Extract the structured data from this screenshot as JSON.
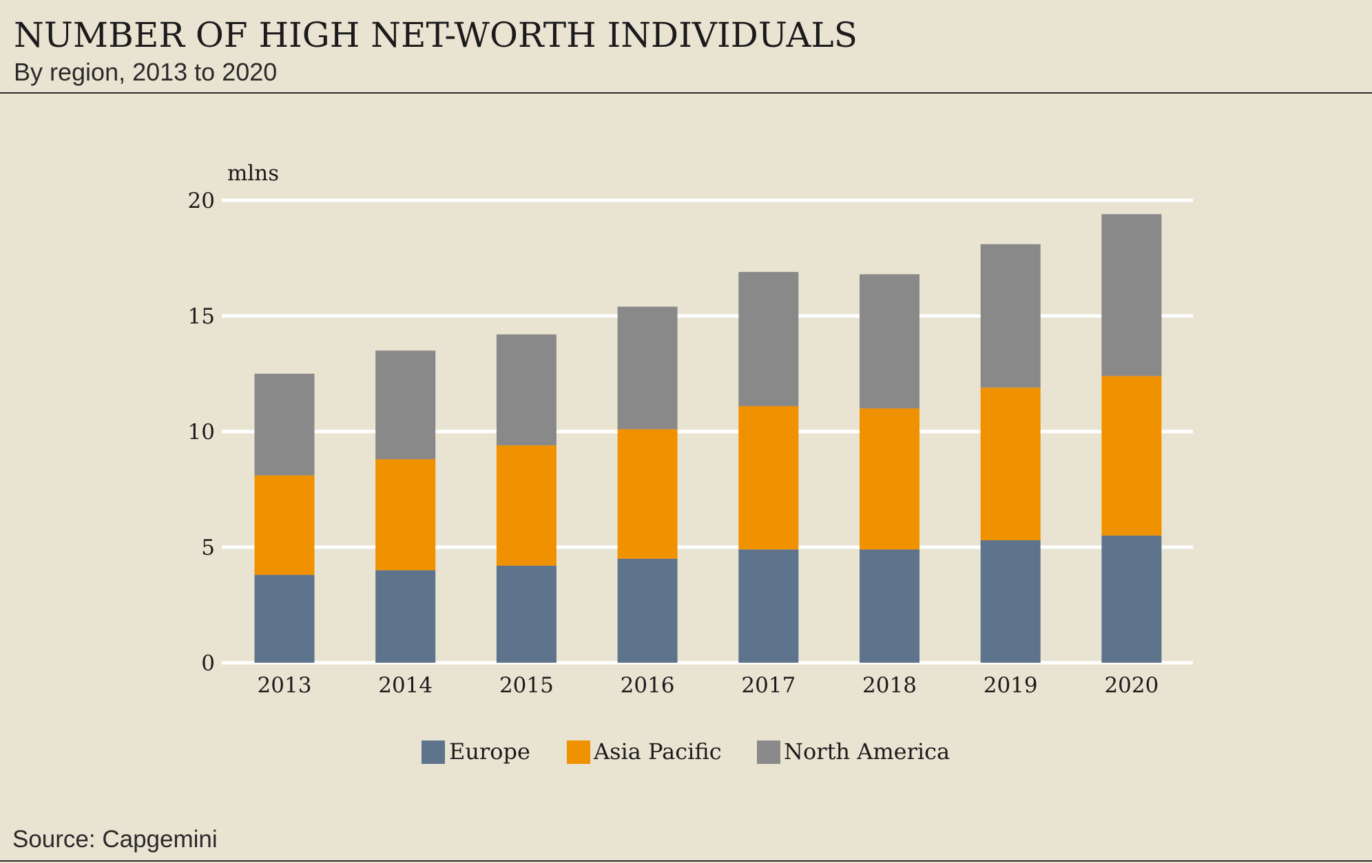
{
  "header": {
    "title": "NUMBER OF HIGH NET-WORTH INDIVIDUALS",
    "subtitle": "By region, 2013 to 2020"
  },
  "footer": {
    "source": "Source: Capgemini"
  },
  "colors": {
    "background": "#e9e3d2",
    "gridline": "#ffffff",
    "europe": "#5e738c",
    "asia_pacific": "#f09100",
    "north_america": "#898989"
  },
  "chart_data": {
    "type": "bar",
    "stacked": true,
    "title": "NUMBER OF HIGH NET-WORTH INDIVIDUALS",
    "subtitle": "By region, 2013 to 2020",
    "xlabel": "",
    "ylabel": "mlns",
    "ylim": [
      0,
      20
    ],
    "yticks": [
      0,
      5,
      10,
      15,
      20
    ],
    "grid": true,
    "legend_position": "bottom-center",
    "categories": [
      "2013",
      "2014",
      "2015",
      "2016",
      "2017",
      "2018",
      "2019",
      "2020"
    ],
    "series": [
      {
        "name": "Europe",
        "color": "#5e738c",
        "values": [
          3.8,
          4.0,
          4.2,
          4.5,
          4.9,
          4.9,
          5.3,
          5.5
        ]
      },
      {
        "name": "Asia Pacific",
        "color": "#f09100",
        "values": [
          4.3,
          4.8,
          5.2,
          5.6,
          6.2,
          6.1,
          6.6,
          6.9
        ]
      },
      {
        "name": "North America",
        "color": "#898989",
        "values": [
          4.4,
          4.7,
          4.8,
          5.3,
          5.8,
          5.8,
          6.2,
          7.0
        ]
      }
    ]
  }
}
